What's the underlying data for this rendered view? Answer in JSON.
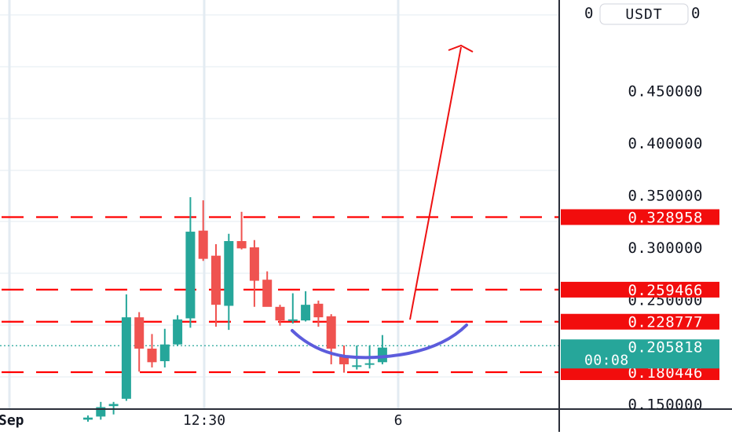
{
  "chart_data": {
    "type": "candlestick",
    "currency_label": "USDT",
    "y_axis_ticks": [
      "0.450000",
      "0.400000",
      "0.350000",
      "0.300000",
      "0.250000",
      "0.150000"
    ],
    "y_axis_top_label_left": "0",
    "y_axis_top_label_right": "0",
    "x_axis_ticks": [
      "Sep",
      "12:30",
      "6"
    ],
    "price_levels": [
      {
        "value": 0.328958,
        "label": "0.328958"
      },
      {
        "value": 0.259466,
        "label": "0.259466"
      },
      {
        "value": 0.228777,
        "label": "0.228777"
      },
      {
        "value": 0.180446,
        "label": "0.180446"
      }
    ],
    "current_price": {
      "value": 0.205818,
      "label": "0.205818",
      "countdown": "00:08"
    },
    "candles": [
      {
        "o": 0.135,
        "h": 0.139,
        "l": 0.133,
        "c": 0.137
      },
      {
        "o": 0.138,
        "h": 0.152,
        "l": 0.135,
        "c": 0.147
      },
      {
        "o": 0.148,
        "h": 0.152,
        "l": 0.14,
        "c": 0.15
      },
      {
        "o": 0.155,
        "h": 0.255,
        "l": 0.153,
        "c": 0.233
      },
      {
        "o": 0.233,
        "h": 0.238,
        "l": 0.181,
        "c": 0.203
      },
      {
        "o": 0.203,
        "h": 0.217,
        "l": 0.185,
        "c": 0.19
      },
      {
        "o": 0.191,
        "h": 0.222,
        "l": 0.185,
        "c": 0.207
      },
      {
        "o": 0.207,
        "h": 0.235,
        "l": 0.206,
        "c": 0.231
      },
      {
        "o": 0.232,
        "h": 0.348,
        "l": 0.223,
        "c": 0.315
      },
      {
        "o": 0.316,
        "h": 0.345,
        "l": 0.287,
        "c": 0.289
      },
      {
        "o": 0.292,
        "h": 0.303,
        "l": 0.224,
        "c": 0.245
      },
      {
        "o": 0.244,
        "h": 0.313,
        "l": 0.221,
        "c": 0.306
      },
      {
        "o": 0.306,
        "h": 0.334,
        "l": 0.298,
        "c": 0.299
      },
      {
        "o": 0.3,
        "h": 0.307,
        "l": 0.243,
        "c": 0.268
      },
      {
        "o": 0.269,
        "h": 0.277,
        "l": 0.244,
        "c": 0.243
      },
      {
        "o": 0.243,
        "h": 0.245,
        "l": 0.225,
        "c": 0.23
      },
      {
        "o": 0.23,
        "h": 0.256,
        "l": 0.227,
        "c": 0.231
      },
      {
        "o": 0.23,
        "h": 0.258,
        "l": 0.229,
        "c": 0.245
      },
      {
        "o": 0.246,
        "h": 0.249,
        "l": 0.224,
        "c": 0.233
      },
      {
        "o": 0.234,
        "h": 0.236,
        "l": 0.188,
        "c": 0.203
      },
      {
        "o": 0.196,
        "h": 0.206,
        "l": 0.18,
        "c": 0.188
      },
      {
        "o": 0.186,
        "h": 0.206,
        "l": 0.183,
        "c": 0.187
      },
      {
        "o": 0.188,
        "h": 0.206,
        "l": 0.184,
        "c": 0.189
      },
      {
        "o": 0.19,
        "h": 0.216,
        "l": 0.188,
        "c": 0.204
      }
    ],
    "colors": {
      "up": "#26a69a",
      "down": "#ef5350",
      "level_line": "#ff0000",
      "level_badge": "#f20d0d",
      "current_badge": "#26a69a",
      "grid": "#e3ebf2",
      "axis_text": "#131722",
      "arrow": "#ee1111",
      "arc": "#5c5cdc"
    }
  }
}
